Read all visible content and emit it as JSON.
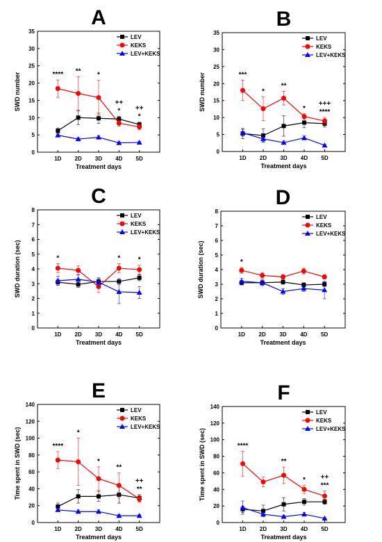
{
  "figure": {
    "xlabel": "Treatment days",
    "categories": [
      "1D",
      "2D",
      "3D",
      "4D",
      "5D"
    ],
    "series_names": [
      "LEV",
      "KEKS",
      "LEV+KEKS"
    ],
    "series_colors": {
      "LEV": "#000000",
      "KEKS": "#ff0000",
      "LEV+KEKS": "#0000ff"
    }
  },
  "chart_data": [
    {
      "panel": "A",
      "type": "line",
      "ylabel": "SWD number",
      "xlabel": "Treatment days",
      "categories": [
        "1D",
        "2D",
        "3D",
        "4D",
        "5D"
      ],
      "ylim": [
        0,
        35
      ],
      "yticks": [
        0,
        5,
        10,
        15,
        20,
        25,
        30,
        35
      ],
      "series": [
        {
          "name": "LEV",
          "values": [
            6.2,
            10.0,
            9.8,
            9.6,
            8.0
          ],
          "errors": [
            0.8,
            2.0,
            1.5,
            0.8,
            0.7
          ]
        },
        {
          "name": "KEKS",
          "values": [
            18.4,
            17.0,
            15.8,
            8.4,
            7.3
          ],
          "errors": [
            2.5,
            4.8,
            5.0,
            0.9,
            0.8
          ]
        },
        {
          "name": "LEV+KEKS",
          "values": [
            4.9,
            3.8,
            4.3,
            2.7,
            2.8
          ],
          "errors": [
            0.5,
            0.4,
            0.5,
            0.3,
            0.3
          ]
        }
      ],
      "annotations": [
        {
          "category": "1D",
          "lines": [
            "****"
          ]
        },
        {
          "category": "2D",
          "lines": [
            "**"
          ]
        },
        {
          "category": "3D",
          "lines": [
            "*"
          ]
        },
        {
          "category": "4D",
          "lines": [
            "++",
            "*"
          ]
        },
        {
          "category": "5D",
          "lines": [
            "++",
            "*"
          ]
        }
      ]
    },
    {
      "panel": "B",
      "type": "line",
      "ylabel": "SWD number",
      "xlabel": "Treatment days",
      "categories": [
        "1D",
        "2D",
        "3D",
        "4D",
        "5D"
      ],
      "ylim": [
        0,
        35
      ],
      "yticks": [
        0,
        5,
        10,
        15,
        20,
        25,
        30,
        35
      ],
      "series": [
        {
          "name": "LEV",
          "values": [
            5.3,
            4.7,
            7.5,
            8.5,
            8.2
          ],
          "errors": [
            1.5,
            2.0,
            3.0,
            1.5,
            1.0
          ]
        },
        {
          "name": "KEKS",
          "values": [
            18.0,
            12.6,
            15.7,
            10.3,
            9.0
          ],
          "errors": [
            3.0,
            3.5,
            2.0,
            0.8,
            1.0
          ]
        },
        {
          "name": "LEV+KEKS",
          "values": [
            5.5,
            3.7,
            2.6,
            4.0,
            1.8
          ],
          "errors": [
            1.0,
            0.8,
            0.5,
            0.6,
            0.3
          ]
        }
      ],
      "annotations": [
        {
          "category": "1D",
          "lines": [
            "***"
          ]
        },
        {
          "category": "2D",
          "lines": [
            "*"
          ]
        },
        {
          "category": "3D",
          "lines": [
            "**"
          ]
        },
        {
          "category": "4D",
          "lines": [
            "*"
          ]
        },
        {
          "category": "5D",
          "lines": [
            "+++",
            "****"
          ]
        }
      ]
    },
    {
      "panel": "C",
      "type": "line",
      "ylabel": "SWD duration (sec)",
      "xlabel": "Treatment days",
      "categories": [
        "1D",
        "2D",
        "3D",
        "4D",
        "5D"
      ],
      "ylim": [
        0,
        8
      ],
      "yticks": [
        0,
        1,
        2,
        3,
        4,
        5,
        6,
        7,
        8
      ],
      "series": [
        {
          "name": "LEV",
          "values": [
            3.1,
            2.95,
            3.15,
            3.15,
            3.4
          ],
          "errors": [
            0.2,
            0.2,
            0.2,
            0.2,
            0.2
          ]
        },
        {
          "name": "KEKS",
          "values": [
            4.05,
            3.9,
            2.8,
            4.05,
            3.95
          ],
          "errors": [
            0.3,
            0.3,
            0.4,
            0.3,
            0.3
          ]
        },
        {
          "name": "LEV+KEKS",
          "values": [
            3.2,
            3.3,
            3.1,
            2.45,
            2.4
          ],
          "errors": [
            0.3,
            0.3,
            0.3,
            0.8,
            0.4
          ]
        }
      ],
      "annotations": [
        {
          "category": "1D",
          "lines": [
            "*"
          ]
        },
        {
          "category": "4D",
          "lines": [
            "*"
          ]
        },
        {
          "category": "5D",
          "lines": [
            "*"
          ]
        }
      ]
    },
    {
      "panel": "D",
      "type": "line",
      "ylabel": "SWD duration (sec)",
      "xlabel": "Treatment days",
      "categories": [
        "1D",
        "2D",
        "3D",
        "4D",
        "5D"
      ],
      "ylim": [
        0,
        8
      ],
      "yticks": [
        0,
        1,
        2,
        3,
        4,
        5,
        6,
        7,
        8
      ],
      "series": [
        {
          "name": "LEV",
          "values": [
            3.1,
            3.1,
            3.15,
            2.95,
            3.0
          ],
          "errors": [
            0.15,
            0.15,
            0.15,
            0.15,
            0.15
          ]
        },
        {
          "name": "KEKS",
          "values": [
            3.95,
            3.6,
            3.5,
            3.9,
            3.5
          ],
          "errors": [
            0.2,
            0.2,
            0.15,
            0.2,
            0.15
          ]
        },
        {
          "name": "LEV+KEKS",
          "values": [
            3.2,
            3.1,
            2.5,
            2.7,
            2.6
          ],
          "errors": [
            0.2,
            0.2,
            0.2,
            0.2,
            0.6
          ]
        }
      ],
      "annotations": [
        {
          "category": "1D",
          "lines": [
            "*"
          ]
        }
      ]
    },
    {
      "panel": "E",
      "type": "line",
      "ylabel": "Time spent in SWD (sec)",
      "xlabel": "Treatment days",
      "categories": [
        "1D",
        "2D",
        "3D",
        "4D",
        "5D"
      ],
      "ylim": [
        0,
        140
      ],
      "yticks": [
        0,
        20,
        40,
        60,
        80,
        100,
        120,
        140
      ],
      "series": [
        {
          "name": "LEV",
          "values": [
            19,
            31,
            31,
            33,
            29
          ],
          "errors": [
            4,
            8,
            6,
            10,
            4
          ]
        },
        {
          "name": "KEKS",
          "values": [
            74,
            72,
            52,
            44,
            28
          ],
          "errors": [
            10,
            28,
            14,
            15,
            4
          ]
        },
        {
          "name": "LEV+KEKS",
          "values": [
            15,
            13,
            13,
            8,
            8
          ],
          "errors": [
            2,
            2,
            2,
            1.5,
            1.5
          ]
        }
      ],
      "annotations": [
        {
          "category": "1D",
          "lines": [
            "****"
          ]
        },
        {
          "category": "2D",
          "lines": [
            "*"
          ]
        },
        {
          "category": "3D",
          "lines": [
            "*"
          ]
        },
        {
          "category": "4D",
          "lines": [
            "**"
          ]
        },
        {
          "category": "5D",
          "lines": [
            "++",
            "**"
          ]
        }
      ]
    },
    {
      "panel": "F",
      "type": "line",
      "ylabel": "Time spent in SWD (sec)",
      "xlabel": "Treatment days",
      "categories": [
        "1D",
        "2D",
        "3D",
        "4D",
        "5D"
      ],
      "ylim": [
        0,
        140
      ],
      "yticks": [
        0,
        20,
        40,
        60,
        80,
        100,
        120,
        140
      ],
      "series": [
        {
          "name": "LEV",
          "values": [
            16,
            14,
            22,
            25,
            25
          ],
          "errors": [
            4,
            7,
            8,
            4,
            3
          ]
        },
        {
          "name": "KEKS",
          "values": [
            71,
            49,
            57,
            40,
            32
          ],
          "errors": [
            15,
            6,
            10,
            5,
            6
          ]
        },
        {
          "name": "LEV+KEKS",
          "values": [
            18,
            10,
            7,
            10,
            5
          ],
          "errors": [
            8,
            2,
            2,
            2,
            1
          ]
        }
      ],
      "annotations": [
        {
          "category": "1D",
          "lines": [
            "****"
          ]
        },
        {
          "category": "3D",
          "lines": [
            "**"
          ]
        },
        {
          "category": "4D",
          "lines": [
            "*"
          ]
        },
        {
          "category": "5D",
          "lines": [
            "++",
            "***"
          ]
        }
      ]
    }
  ]
}
